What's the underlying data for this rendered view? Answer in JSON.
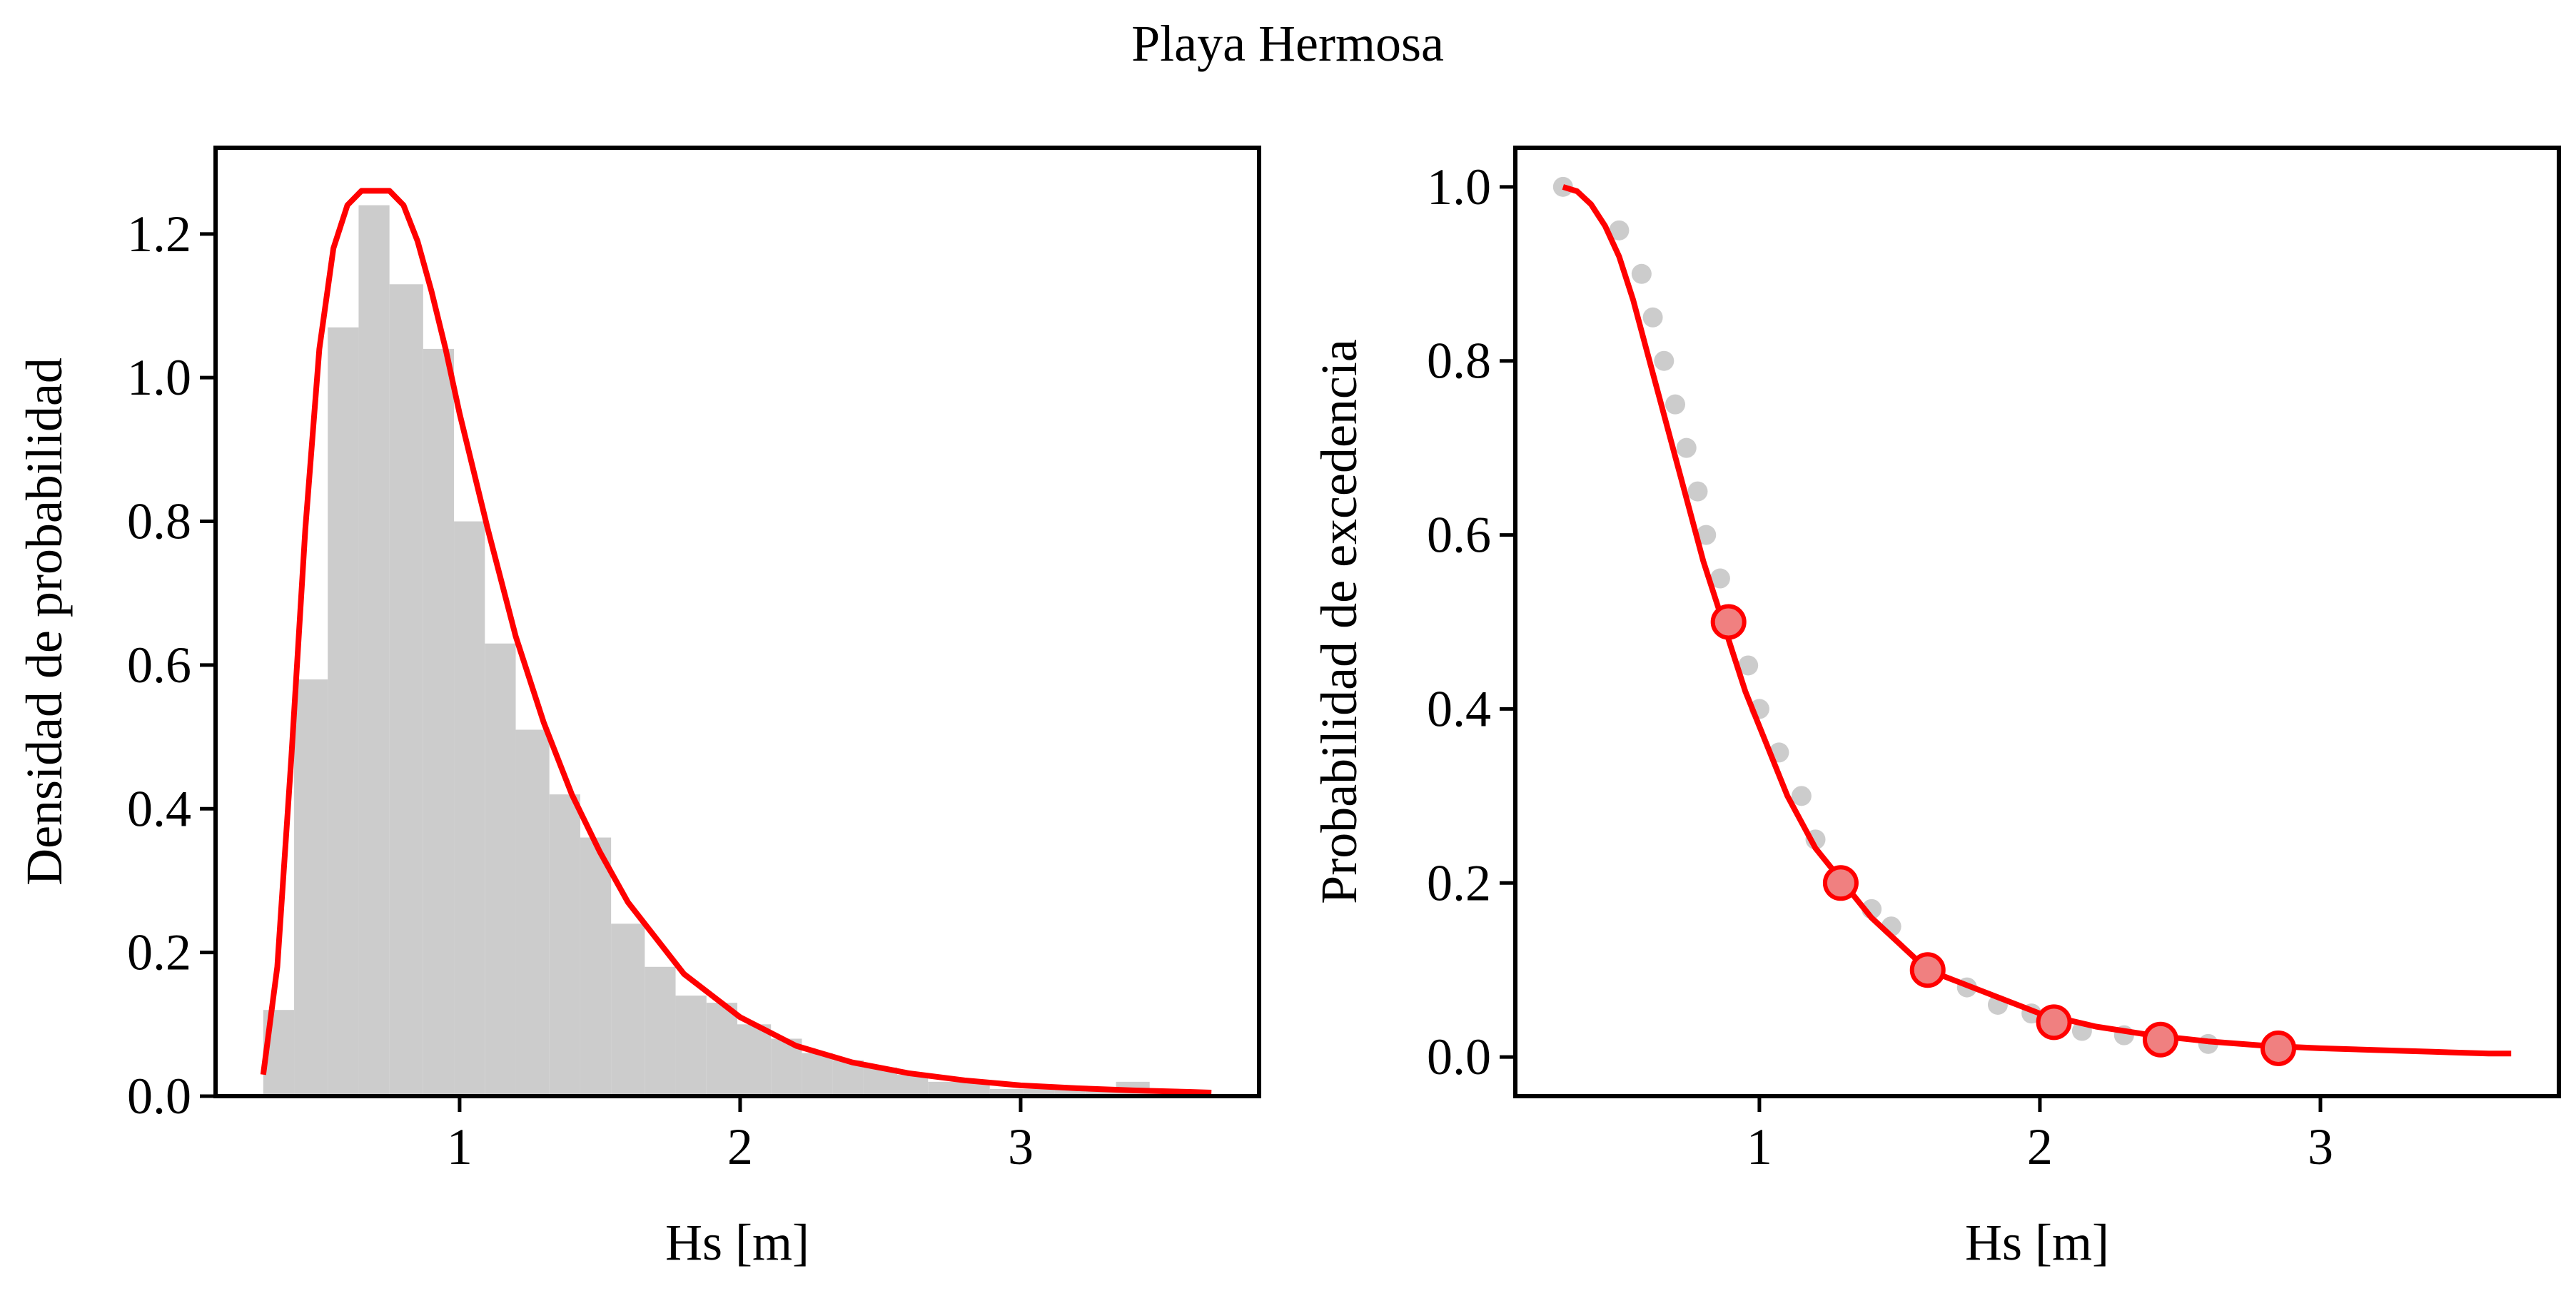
{
  "figure": {
    "suptitle": "Playa Hermosa"
  },
  "colors": {
    "fit_line": "#ff0000",
    "histogram": "#cccccc",
    "empirical_points": "#cccccc",
    "marker_fill": "#f08080",
    "marker_edge": "#ff0000",
    "axes": "#000000"
  },
  "chart_data": [
    {
      "type": "bar",
      "subtype": "histogram with fitted density curve",
      "title": "",
      "xlabel": "Hs [m]",
      "ylabel": "Densidad de probabilidad",
      "xlim": [
        0.13,
        3.85
      ],
      "ylim": [
        0.0,
        1.32
      ],
      "xticks": [
        1,
        2,
        3
      ],
      "xtick_labels": [
        "1",
        "2",
        "3"
      ],
      "yticks": [
        0.0,
        0.2,
        0.4,
        0.6,
        0.8,
        1.0,
        1.2
      ],
      "ytick_labels": [
        "0.0",
        "0.2",
        "0.4",
        "0.6",
        "0.8",
        "1.0",
        "1.2"
      ],
      "grid": false,
      "histogram": {
        "bin_edges": [
          0.3,
          0.41,
          0.53,
          0.64,
          0.75,
          0.87,
          0.98,
          1.09,
          1.2,
          1.32,
          1.43,
          1.54,
          1.66,
          1.77,
          1.88,
          1.99,
          2.11,
          2.22,
          2.33,
          2.44,
          2.56,
          2.67,
          2.78,
          2.89,
          3.01,
          3.12,
          3.23,
          3.34,
          3.46,
          3.57
        ],
        "density": [
          0.12,
          0.58,
          1.07,
          1.24,
          1.13,
          1.04,
          0.8,
          0.63,
          0.51,
          0.42,
          0.36,
          0.24,
          0.18,
          0.14,
          0.13,
          0.1,
          0.08,
          0.06,
          0.05,
          0.04,
          0.03,
          0.02,
          0.02,
          0.01,
          0.01,
          0.01,
          0.01,
          0.02,
          0.01
        ]
      },
      "series": [
        {
          "x": [
            0.3,
            0.35,
            0.4,
            0.45,
            0.5,
            0.55,
            0.6,
            0.65,
            0.7,
            0.75,
            0.8,
            0.85,
            0.9,
            0.95,
            1.0,
            1.1,
            1.2,
            1.3,
            1.4,
            1.5,
            1.6,
            1.8,
            2.0,
            2.2,
            2.4,
            2.6,
            2.8,
            3.0,
            3.2,
            3.4,
            3.6,
            3.68
          ],
          "y": [
            0.03,
            0.18,
            0.47,
            0.79,
            1.04,
            1.18,
            1.24,
            1.26,
            1.26,
            1.26,
            1.24,
            1.19,
            1.12,
            1.04,
            0.95,
            0.79,
            0.64,
            0.52,
            0.42,
            0.34,
            0.27,
            0.17,
            0.11,
            0.07,
            0.047,
            0.032,
            0.022,
            0.015,
            0.011,
            0.008,
            0.006,
            0.005
          ]
        }
      ]
    },
    {
      "type": "line",
      "subtype": "exceedance probability with empirical points",
      "title": "",
      "xlabel": "Hs [m]",
      "ylabel": "Probabilidad de excedencia",
      "xlim": [
        0.13,
        3.85
      ],
      "ylim": [
        -0.045,
        1.045
      ],
      "xticks": [
        1,
        2,
        3
      ],
      "xtick_labels": [
        "1",
        "2",
        "3"
      ],
      "yticks": [
        0.0,
        0.2,
        0.4,
        0.6,
        0.8,
        1.0
      ],
      "ytick_labels": [
        "0.0",
        "0.2",
        "0.4",
        "0.6",
        "0.8",
        "1.0"
      ],
      "grid": false,
      "series": [
        {
          "role": "fitted curve",
          "x": [
            0.3,
            0.35,
            0.4,
            0.45,
            0.5,
            0.55,
            0.6,
            0.65,
            0.7,
            0.75,
            0.8,
            0.85,
            0.9,
            0.95,
            1.0,
            1.1,
            1.2,
            1.3,
            1.4,
            1.5,
            1.6,
            1.8,
            2.0,
            2.2,
            2.4,
            2.6,
            2.8,
            3.0,
            3.2,
            3.4,
            3.6,
            3.68
          ],
          "y": [
            1.0,
            0.995,
            0.98,
            0.955,
            0.92,
            0.87,
            0.81,
            0.75,
            0.69,
            0.63,
            0.57,
            0.52,
            0.47,
            0.42,
            0.38,
            0.3,
            0.24,
            0.2,
            0.16,
            0.13,
            0.1,
            0.075,
            0.05,
            0.035,
            0.025,
            0.018,
            0.013,
            0.01,
            0.008,
            0.006,
            0.004,
            0.004
          ]
        },
        {
          "role": "empirical points",
          "x": [
            0.3,
            0.5,
            0.58,
            0.62,
            0.66,
            0.7,
            0.74,
            0.78,
            0.81,
            0.86,
            0.9,
            0.96,
            1.0,
            1.07,
            1.15,
            1.2,
            1.29,
            1.4,
            1.47,
            1.6,
            1.74,
            1.85,
            1.97,
            2.05,
            2.15,
            2.3,
            2.43,
            2.6,
            2.85
          ],
          "y": [
            1.0,
            0.95,
            0.9,
            0.85,
            0.8,
            0.75,
            0.7,
            0.65,
            0.6,
            0.55,
            0.5,
            0.45,
            0.4,
            0.35,
            0.3,
            0.25,
            0.2,
            0.17,
            0.15,
            0.1,
            0.08,
            0.06,
            0.05,
            0.04,
            0.03,
            0.025,
            0.02,
            0.015,
            0.01
          ]
        },
        {
          "role": "highlighted markers",
          "x": [
            0.89,
            1.29,
            1.6,
            2.05,
            2.43,
            2.85
          ],
          "y": [
            0.5,
            0.2,
            0.1,
            0.04,
            0.02,
            0.01
          ]
        }
      ]
    }
  ]
}
